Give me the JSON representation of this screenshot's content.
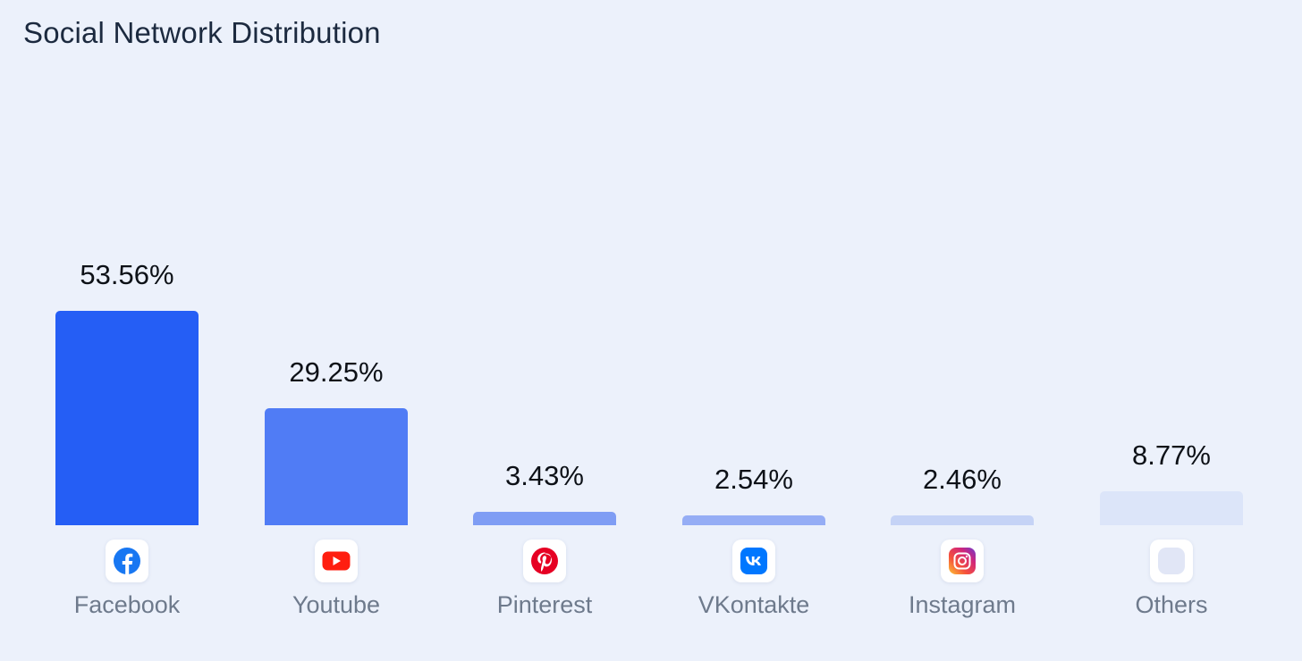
{
  "title": "Social Network Distribution",
  "chart_data": {
    "type": "bar",
    "categories": [
      "Facebook",
      "Youtube",
      "Pinterest",
      "VKontakte",
      "Instagram",
      "Others"
    ],
    "values": [
      53.56,
      29.25,
      3.43,
      2.54,
      2.46,
      8.77
    ],
    "value_labels": [
      "53.56%",
      "29.25%",
      "3.43%",
      "2.54%",
      "2.46%",
      "8.77%"
    ],
    "icons": [
      "facebook-icon",
      "youtube-icon",
      "pinterest-icon",
      "vkontakte-icon",
      "instagram-icon",
      "others-icon"
    ],
    "bar_colors": [
      "#255ef5",
      "#507cf5",
      "#7f9df4",
      "#95adf5",
      "#c5d3f6",
      "#dce5f9"
    ],
    "title": "Social Network Distribution",
    "xlabel": "",
    "ylabel": "",
    "grid": false
  }
}
